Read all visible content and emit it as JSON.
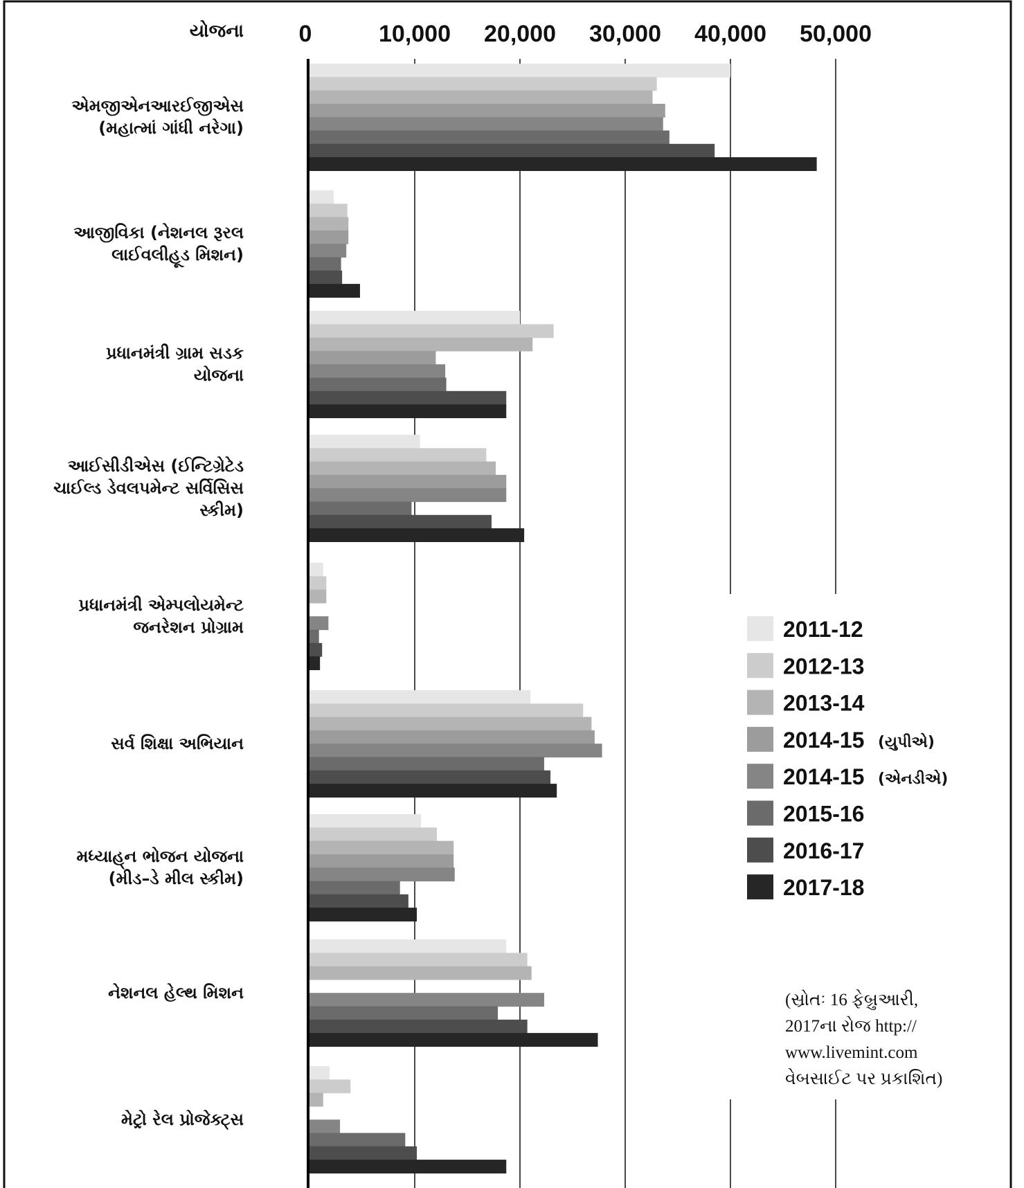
{
  "chart_data": {
    "type": "bar",
    "orientation": "horizontal",
    "category_header": "યોજના",
    "categories": [
      [
        "એમજીએનઆરઈજીએસ",
        "(મહાત્માં ગાંધી નરેગા)"
      ],
      [
        "આજીવિકા (નેશનલ રૂરલ",
        "લાઈવલીહૂડ મિશન)"
      ],
      [
        "પ્રધાનમંત્રી ગ્રામ સડક",
        "યોજના"
      ],
      [
        "આઈસીડીએસ (ઈન્ટિગ્રેટેડ",
        "ચાઈલ્ડ ડેવલપમેન્ટ સર્વિસિસ",
        "સ્કીમ)"
      ],
      [
        "પ્રધાનમંત્રી એમ્પલોયમેન્ટ",
        "જનરેશન પ્રોગ્રામ"
      ],
      [
        "સર્વ શિક્ષા અભિયાન"
      ],
      [
        "મધ્યાહ્‌ન ભોજન યોજના",
        "(મીડ–ડે મીલ સ્કીમ)"
      ],
      [
        "નેશનલ હેલ્થ મિશન"
      ],
      [
        "મેટ્રો રેલ પ્રોજેક્ટ્સ"
      ]
    ],
    "x_ticks": [
      "0",
      "10,000",
      "20,000",
      "30,000",
      "40,000",
      "50,000"
    ],
    "xlim": [
      0,
      50000
    ],
    "grid": true,
    "legend_position": "right",
    "series": [
      {
        "name": "2011-12",
        "note": "",
        "color": "#e6e6e6",
        "values": [
          40000,
          2300,
          20000,
          10500,
          1300,
          21000,
          10600,
          18700,
          1900
        ]
      },
      {
        "name": "2012-13",
        "note": "",
        "color": "#cccccc",
        "values": [
          33000,
          3600,
          23200,
          16800,
          1600,
          26000,
          12100,
          20700,
          3900
        ]
      },
      {
        "name": "2013-14",
        "note": "",
        "color": "#b4b4b4",
        "values": [
          32600,
          3700,
          21200,
          17700,
          1600,
          26800,
          13700,
          21100,
          1300
        ]
      },
      {
        "name": "2014-15",
        "note": "(યુપીએ)",
        "color": "#9c9c9c",
        "values": [
          33800,
          3700,
          12000,
          18700,
          0,
          27100,
          13700,
          0,
          0
        ]
      },
      {
        "name": "2014-15",
        "note": "(એનડીએ)",
        "color": "#858585",
        "values": [
          33600,
          3500,
          12900,
          18700,
          1800,
          27800,
          13800,
          22300,
          2900
        ]
      },
      {
        "name": "2015-16",
        "note": "",
        "color": "#6b6b6b",
        "values": [
          34200,
          3000,
          13000,
          9700,
          900,
          22300,
          8600,
          17900,
          9100
        ]
      },
      {
        "name": "2016-17",
        "note": "",
        "color": "#4d4d4d",
        "values": [
          38500,
          3100,
          18700,
          17300,
          1200,
          22900,
          9400,
          20700,
          10200
        ]
      },
      {
        "name": "2017-18",
        "note": "",
        "color": "#262626",
        "values": [
          48200,
          4800,
          18700,
          20400,
          1000,
          23500,
          10200,
          27400,
          18700
        ]
      }
    ],
    "source": [
      "(સ્રોતઃ 16 ફેબ્રુઆરી,",
      "2017ના રોજ http://",
      "www.livemint.com",
      "વેબસાઈટ પર પ્રકાશિત)"
    ]
  }
}
